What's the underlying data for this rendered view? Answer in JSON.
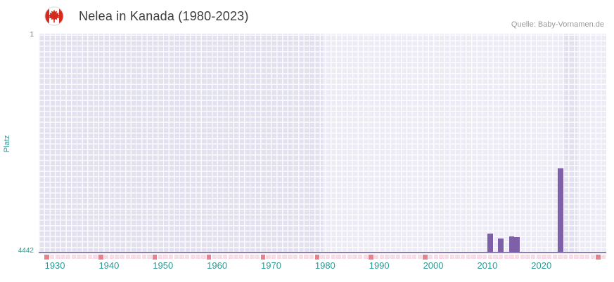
{
  "header": {
    "title": "Nelea in Kanada (1980-2023)",
    "source": "Quelle: Baby-Vornamen.de",
    "flag_icon": "canada-flag-icon"
  },
  "colors": {
    "bar_purple": "#7E60A9",
    "axis_teal": "#2b9a93",
    "axis_line_purple": "#8d7bb5",
    "plot_background": "#ECEBF6",
    "plot_band": "#E3E1F0",
    "marker_light_pink": "#F7DCE8",
    "marker_dark_pink": "#E8808E",
    "flag_red": "#d52b1e"
  },
  "chart_data": {
    "type": "bar",
    "title": "Nelea in Kanada (1980-2023)",
    "xlabel": "",
    "ylabel": "Platz",
    "grid": true,
    "legend": "none",
    "x_range": [
      1927,
      2032
    ],
    "x_ticks": [
      1930,
      1940,
      1950,
      1960,
      1970,
      1980,
      1990,
      2000,
      2010,
      2020
    ],
    "y_axis": {
      "min": 1,
      "max": 4442,
      "inverted": true,
      "top_tick_label": "1",
      "bottom_tick_label": "4442"
    },
    "series": [
      {
        "name": "Platz",
        "color": "#7E60A9",
        "points": [
          {
            "year": 2010,
            "rank": 4050
          },
          {
            "year": 2012,
            "rank": 4140
          },
          {
            "year": 2014,
            "rank": 4100
          },
          {
            "year": 2015,
            "rank": 4110
          },
          {
            "year": 2023,
            "rank": 2720
          }
        ]
      }
    ],
    "plot_bands": [
      {
        "from": 1927,
        "to": 1979.5,
        "color": "#E3E1F0"
      },
      {
        "from": 2024,
        "to": 2026.5,
        "color": "#E3E1F0"
      }
    ],
    "baseline_markers": {
      "start": 1928,
      "end": 2031,
      "light_color": "#F7DCE8",
      "dark_color": "#E8808E",
      "dark_years": [
        1928,
        1938,
        1948,
        1958,
        1968,
        1978,
        1988,
        1998,
        2030
      ]
    }
  }
}
